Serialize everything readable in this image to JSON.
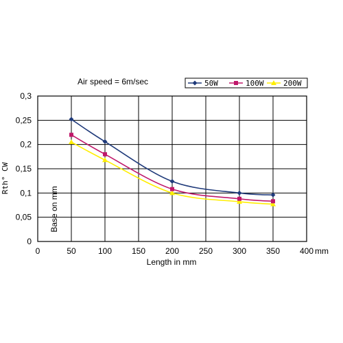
{
  "chart_data": {
    "type": "line",
    "title": "Air speed = 6m/sec",
    "xlabel": "Length in mm",
    "x_unit": "mm",
    "ylabel": "Rth° CW",
    "annotation": "Base on mm",
    "xlim": [
      0,
      400
    ],
    "ylim": [
      0,
      0.3
    ],
    "x_ticks": [
      0,
      50,
      100,
      150,
      200,
      250,
      300,
      350,
      400
    ],
    "x_tick_labels": [
      "0",
      "50",
      "100",
      "150",
      "200",
      "250",
      "300",
      "350",
      "400"
    ],
    "y_ticks": [
      0,
      0.05,
      0.1,
      0.15,
      0.2,
      0.25,
      0.3
    ],
    "y_tick_labels": [
      "0",
      "0,05",
      "0,1",
      "0,15",
      "0,2",
      "0,25",
      "0,3"
    ],
    "grid": true,
    "legend_position": "top-right",
    "x": [
      50,
      100,
      200,
      300,
      350
    ],
    "series": [
      {
        "name": "50W",
        "color": "#1f3a7a",
        "marker": "diamond",
        "values": [
          0.252,
          0.206,
          0.124,
          0.1,
          0.096
        ]
      },
      {
        "name": "100W",
        "color": "#c0186a",
        "marker": "square",
        "values": [
          0.22,
          0.18,
          0.108,
          0.088,
          0.083
        ]
      },
      {
        "name": "200W",
        "color": "#ffee00",
        "marker": "triangle",
        "values": [
          0.205,
          0.168,
          0.1,
          0.082,
          0.077
        ]
      }
    ]
  }
}
